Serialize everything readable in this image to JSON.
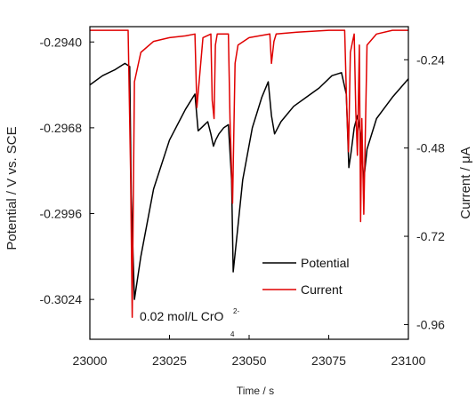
{
  "chart_data": {
    "type": "line",
    "title": "",
    "xlabel": "Time / s",
    "ylabel_left": "Potential / V vs. SCE",
    "ylabel_right": "Current / μA",
    "xlim": [
      23000,
      23100
    ],
    "ylim_left": [
      -0.3037,
      -0.2935
    ],
    "ylim_right": [
      -1.0,
      -0.15
    ],
    "x_ticks": [
      "23000",
      "23025",
      "23050",
      "23075",
      "23100"
    ],
    "x_tick_values": [
      23000,
      23025,
      23050,
      23075,
      23100
    ],
    "y_left_ticks": [
      "-0.2940",
      "-0.2968",
      "-0.2996",
      "-0.3024"
    ],
    "y_left_tick_values": [
      -0.294,
      -0.2968,
      -0.2996,
      -0.3024
    ],
    "y_right_ticks": [
      "-0.24",
      "-0.48",
      "-0.72",
      "-0.96"
    ],
    "y_right_tick_values": [
      -0.24,
      -0.48,
      -0.72,
      -0.96
    ],
    "grid": false,
    "legend_position": "bottom-right",
    "annotation": {
      "text": "0.02 mol/L CrO",
      "superscript": "2-",
      "subscript": "4"
    },
    "series": [
      {
        "name": "Potential",
        "axis": "left",
        "color": "#000000",
        "x": [
          23000,
          23004,
          23008,
          23011,
          23012.5,
          23013,
          23014,
          23016,
          23020,
          23025,
          23030,
          23033,
          23034,
          23035,
          23036,
          23037,
          23038,
          23038.8,
          23039.5,
          23040.5,
          23042,
          23043.5,
          23044.5,
          23045,
          23046,
          23048,
          23051,
          23054,
          23056,
          23057,
          23058,
          23060,
          23064,
          23068,
          23072,
          23076,
          23079,
          23080.5,
          23081.3,
          23082,
          23083,
          23084,
          23085,
          23085.5,
          23086,
          23087,
          23090,
          23095,
          23100
        ],
        "y": [
          -0.2954,
          -0.2951,
          -0.2949,
          -0.2947,
          -0.2948,
          -0.299,
          -0.3024,
          -0.301,
          -0.2988,
          -0.2972,
          -0.2962,
          -0.2957,
          -0.2969,
          -0.2968,
          -0.2967,
          -0.2966,
          -0.297,
          -0.2974,
          -0.2972,
          -0.297,
          -0.2968,
          -0.2967,
          -0.2985,
          -0.3015,
          -0.3005,
          -0.2985,
          -0.2968,
          -0.2958,
          -0.2953,
          -0.2964,
          -0.297,
          -0.2966,
          -0.2961,
          -0.2958,
          -0.2955,
          -0.2951,
          -0.295,
          -0.2957,
          -0.2981,
          -0.2976,
          -0.2968,
          -0.2964,
          -0.297,
          -0.2978,
          -0.2985,
          -0.2975,
          -0.2965,
          -0.2958,
          -0.2952
        ]
      },
      {
        "name": "Current",
        "axis": "right",
        "color": "#e00000",
        "x": [
          23000,
          23012,
          23012.8,
          23013.3,
          23014,
          23016,
          23020,
          23025,
          23030,
          23033,
          23033.6,
          23034.8,
          23035.5,
          23038,
          23038.4,
          23039,
          23039.4,
          23040,
          23043.5,
          23044,
          23044.8,
          23045.6,
          23046.5,
          23050,
          23056.5,
          23057,
          23057.8,
          23058.5,
          23065,
          23075,
          23080,
          23080.6,
          23081.2,
          23081.8,
          23082.5,
          23083,
          23083.5,
          23084,
          23084.6,
          23085,
          23085.4,
          23086,
          23087,
          23090,
          23095,
          23100
        ],
        "y": [
          -0.16,
          -0.16,
          -0.55,
          -0.94,
          -0.3,
          -0.22,
          -0.19,
          -0.18,
          -0.175,
          -0.17,
          -0.37,
          -0.25,
          -0.18,
          -0.17,
          -0.35,
          -0.4,
          -0.2,
          -0.17,
          -0.17,
          -0.4,
          -0.63,
          -0.25,
          -0.2,
          -0.18,
          -0.17,
          -0.25,
          -0.19,
          -0.17,
          -0.165,
          -0.16,
          -0.16,
          -0.35,
          -0.49,
          -0.22,
          -0.19,
          -0.17,
          -0.38,
          -0.5,
          -0.2,
          -0.68,
          -0.4,
          -0.66,
          -0.2,
          -0.17,
          -0.16,
          -0.16
        ]
      }
    ]
  }
}
